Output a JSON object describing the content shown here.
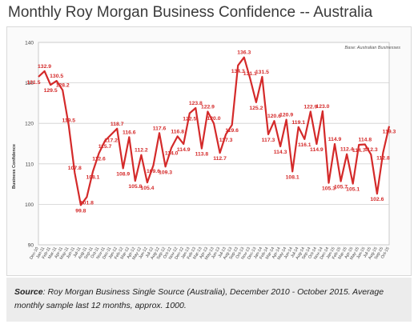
{
  "page": {
    "title": "Monthly Roy Morgan Business Confidence -- Australia",
    "source_label": "Source",
    "source_text": ": Roy Morgan Business Single Source (Australia), December 2010 - October 2015. Average monthly sample last 12 months, approx. 1000."
  },
  "chart_data": {
    "type": "line",
    "title": "Monthly Roy Morgan Business Confidence -- Australia",
    "ylabel": "Business Confidence",
    "xlabel": "",
    "ylim": [
      90,
      140
    ],
    "yticks": [
      90,
      100,
      110,
      120,
      130,
      140
    ],
    "grid": true,
    "annotation": "Base: Australian Businesses",
    "line_color": "#d42a2a",
    "x": [
      "Dec-10",
      "Jan-11",
      "Feb-11",
      "Mar-11",
      "Apr-11",
      "May-11",
      "Jun-11",
      "Jul-11",
      "Aug-11",
      "Sep-11",
      "Oct-11",
      "Nov-11",
      "Dec-11",
      "Jan-12",
      "Feb-12",
      "Mar-12",
      "Apr-12",
      "May-12",
      "Jun-12",
      "Jul-12",
      "Aug-12",
      "Sep-12",
      "Oct-12",
      "Nov-12",
      "Dec-12",
      "Jan-13",
      "Feb-13",
      "Mar-13",
      "Apr-13",
      "May-13",
      "Jun-13",
      "Jul-13",
      "Aug-13",
      "Sep-13",
      "Oct-13",
      "Nov-13",
      "Dec-13",
      "Jan-14",
      "Feb-14",
      "Mar-14",
      "Apr-14",
      "May-14",
      "Jun-14",
      "Jul-14",
      "Aug-14",
      "Sep-14",
      "Oct-14",
      "Nov-14",
      "Dec-14",
      "Jan-15",
      "Feb-15",
      "Mar-15",
      "Apr-15",
      "May-15",
      "Jun-15",
      "Jul-15",
      "Aug-15",
      "Sep-15",
      "Oct-15"
    ],
    "series": [
      {
        "values": [
          131.5,
          132.9,
          129.5,
          130.5,
          128.2,
          119.5,
          107.8,
          99.8,
          101.8,
          108.1,
          112.6,
          115.7,
          117.2,
          118.7,
          108.9,
          116.6,
          105.8,
          112.2,
          105.4,
          109.6,
          117.6,
          109.3,
          114.0,
          116.8,
          114.9,
          122.5,
          123.8,
          113.8,
          122.9,
          120.0,
          112.7,
          117.3,
          119.6,
          134.3,
          136.3,
          131.1,
          125.2,
          131.5,
          117.3,
          120.6,
          114.3,
          120.9,
          108.1,
          119.1,
          116.1,
          122.9,
          114.9,
          123.0,
          105.3,
          114.9,
          105.7,
          112.4,
          105.1,
          114.7,
          114.8,
          112.3,
          102.6,
          112.8,
          119.3
        ]
      }
    ]
  }
}
